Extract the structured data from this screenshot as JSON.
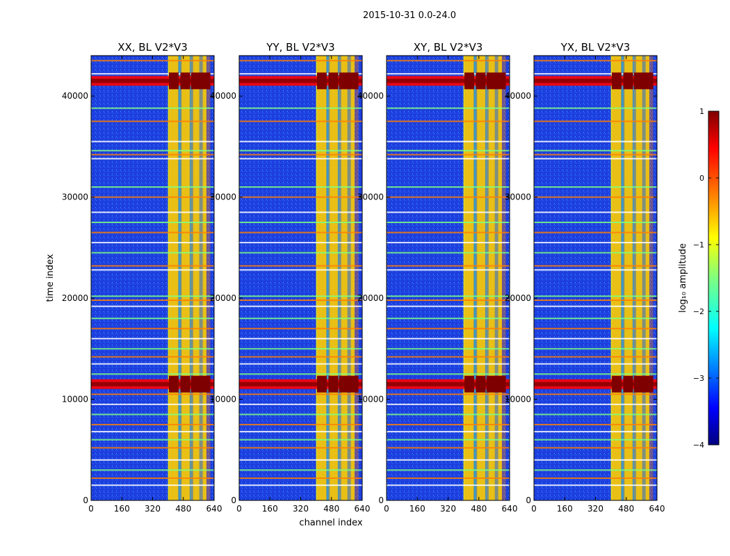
{
  "figure": {
    "suptitle": "2015-10-31 0.0-24.0"
  },
  "colors": {
    "jet": [
      "#00007f",
      "#0000ff",
      "#007fff",
      "#00ffff",
      "#7fff7f",
      "#ffff00",
      "#ff7f00",
      "#ff0000",
      "#7f0000"
    ],
    "background_low": "#1f3fd9"
  },
  "chart_data": {
    "type": "heatmap",
    "xlabel": "channel index",
    "ylabel": "time index",
    "xlim": [
      0,
      640
    ],
    "ylim": [
      0,
      44000
    ],
    "x_ticks": [
      0,
      160,
      320,
      480,
      640
    ],
    "x_tick_labels": [
      "0",
      "160",
      "320",
      "480",
      "640"
    ],
    "y_ticks": [
      0,
      10000,
      20000,
      30000,
      40000
    ],
    "y_tick_labels": [
      "0",
      "10000",
      "20000",
      "30000",
      "40000"
    ],
    "panels": [
      {
        "title": "XX, BL V2*V3",
        "pol": "XX",
        "strong_bands_time": [
          41500,
          11500
        ]
      },
      {
        "title": "YY, BL V2*V3",
        "pol": "YY",
        "strong_bands_time": [
          41500,
          11500
        ]
      },
      {
        "title": "XY, BL V2*V3",
        "pol": "XY",
        "strong_bands_time": [
          41500,
          11500
        ]
      },
      {
        "title": "YX, BL V2*V3",
        "pol": "YX",
        "strong_bands_time": [
          41500,
          11500
        ]
      }
    ],
    "active_channel_range": [
      400,
      600
    ],
    "active_channel_columns": [
      430,
      490,
      545,
      595
    ],
    "flagged_time_rows": [
      1500,
      2200,
      3000,
      4000,
      5200,
      6000,
      6800,
      7500,
      8500,
      9500,
      10500,
      12500,
      13500,
      14200,
      15000,
      16000,
      17000,
      18000,
      19200,
      19800,
      20200,
      22800,
      23200,
      24500,
      25500,
      26500,
      27500,
      28500,
      30000,
      31000,
      33800,
      34200,
      34600,
      35500,
      37500,
      38800,
      42200,
      43500
    ],
    "colorbar": {
      "label": "log₁₀ amplitude",
      "range": [
        -4,
        1
      ],
      "ticks": [
        1,
        0,
        -1,
        -2,
        -3,
        -4
      ],
      "tick_labels": [
        "1",
        "0",
        "−1",
        "−2",
        "−3",
        "−4"
      ]
    }
  }
}
